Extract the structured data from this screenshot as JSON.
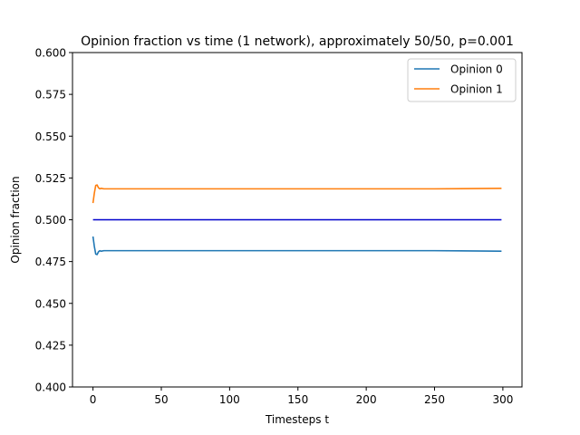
{
  "chart_data": {
    "type": "line",
    "title": "Opinion fraction vs time (1 network), approximately 50/50, p=0.001",
    "xlabel": "Timesteps t",
    "ylabel": "Opinion fraction",
    "xlim": [
      -15,
      314
    ],
    "ylim": [
      0.4,
      0.6
    ],
    "xticks": [
      0,
      50,
      100,
      150,
      200,
      250,
      300
    ],
    "xtick_labels": [
      "0",
      "50",
      "100",
      "150",
      "200",
      "250",
      "300"
    ],
    "yticks": [
      0.4,
      0.425,
      0.45,
      0.475,
      0.5,
      0.525,
      0.55,
      0.575,
      0.6
    ],
    "ytick_labels": [
      "0.400",
      "0.425",
      "0.450",
      "0.475",
      "0.500",
      "0.525",
      "0.550",
      "0.575",
      "0.600"
    ],
    "grid": false,
    "legend_position": "top-right",
    "x": [
      0,
      1,
      2,
      3,
      4,
      5,
      6,
      8,
      10,
      20,
      50,
      100,
      150,
      200,
      250,
      299
    ],
    "series": [
      {
        "name": "Opinion 0",
        "color": "#1f77b4",
        "values": [
          0.49,
          0.484,
          0.4795,
          0.4792,
          0.4808,
          0.4815,
          0.4812,
          0.4815,
          0.4815,
          0.4815,
          0.4815,
          0.4815,
          0.4815,
          0.4815,
          0.4815,
          0.4812
        ]
      },
      {
        "name": "Opinion 1",
        "color": "#ff7f0e",
        "values": [
          0.51,
          0.516,
          0.5205,
          0.5208,
          0.5192,
          0.5185,
          0.5188,
          0.5185,
          0.5185,
          0.5185,
          0.5185,
          0.5185,
          0.5185,
          0.5185,
          0.5185,
          0.5188
        ]
      }
    ],
    "reference_line": {
      "y": 0.5,
      "x_range": [
        0,
        299
      ],
      "color": "#0000cd"
    }
  }
}
